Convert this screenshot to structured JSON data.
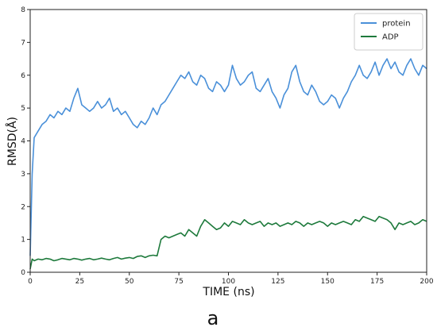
{
  "chart_data": {
    "type": "line",
    "title": "",
    "xlabel": "TIME (ns)",
    "ylabel": "RMSD(Å)",
    "xlim": [
      0,
      200
    ],
    "ylim": [
      0,
      8
    ],
    "xticks": [
      0,
      25,
      50,
      75,
      100,
      125,
      150,
      175,
      200
    ],
    "yticks": [
      0,
      1,
      2,
      3,
      4,
      5,
      6,
      7,
      8
    ],
    "grid": false,
    "legend_position": "top-right",
    "series": [
      {
        "name": "protein",
        "color": "#4a90d9",
        "x": [
          0,
          1,
          2,
          4,
          6,
          8,
          10,
          12,
          14,
          16,
          18,
          20,
          22,
          24,
          26,
          28,
          30,
          32,
          34,
          36,
          38,
          40,
          42,
          44,
          46,
          48,
          50,
          52,
          54,
          56,
          58,
          60,
          62,
          64,
          66,
          68,
          70,
          72,
          74,
          76,
          78,
          80,
          82,
          84,
          86,
          88,
          90,
          92,
          94,
          96,
          98,
          100,
          102,
          104,
          106,
          108,
          110,
          112,
          114,
          116,
          118,
          120,
          122,
          124,
          126,
          128,
          130,
          132,
          134,
          136,
          138,
          140,
          142,
          144,
          146,
          148,
          150,
          152,
          154,
          156,
          158,
          160,
          162,
          164,
          166,
          168,
          170,
          172,
          174,
          176,
          178,
          180,
          182,
          184,
          186,
          188,
          190,
          192,
          194,
          196,
          198,
          200
        ],
        "values": [
          0.5,
          3.0,
          4.1,
          4.3,
          4.5,
          4.6,
          4.8,
          4.7,
          4.9,
          4.8,
          5.0,
          4.9,
          5.3,
          5.6,
          5.1,
          5.0,
          4.9,
          5.0,
          5.2,
          5.0,
          5.1,
          5.3,
          4.9,
          5.0,
          4.8,
          4.9,
          4.7,
          4.5,
          4.4,
          4.6,
          4.5,
          4.7,
          5.0,
          4.8,
          5.1,
          5.2,
          5.4,
          5.6,
          5.8,
          6.0,
          5.9,
          6.1,
          5.8,
          5.7,
          6.0,
          5.9,
          5.6,
          5.5,
          5.8,
          5.7,
          5.5,
          5.7,
          6.3,
          5.9,
          5.7,
          5.8,
          6.0,
          6.1,
          5.6,
          5.5,
          5.7,
          5.9,
          5.5,
          5.3,
          5.0,
          5.4,
          5.6,
          6.1,
          6.3,
          5.8,
          5.5,
          5.4,
          5.7,
          5.5,
          5.2,
          5.1,
          5.2,
          5.4,
          5.3,
          5.0,
          5.3,
          5.5,
          5.8,
          6.0,
          6.3,
          6.0,
          5.9,
          6.1,
          6.4,
          6.0,
          6.3,
          6.5,
          6.2,
          6.4,
          6.1,
          6.0,
          6.3,
          6.5,
          6.2,
          6.0,
          6.3,
          6.2
        ]
      },
      {
        "name": "ADP",
        "color": "#1e7a3c",
        "x": [
          0,
          1,
          2,
          4,
          6,
          8,
          10,
          12,
          14,
          16,
          18,
          20,
          22,
          24,
          26,
          28,
          30,
          32,
          34,
          36,
          38,
          40,
          42,
          44,
          46,
          48,
          50,
          52,
          54,
          56,
          58,
          60,
          62,
          64,
          66,
          68,
          70,
          72,
          74,
          76,
          78,
          80,
          82,
          84,
          86,
          88,
          90,
          92,
          94,
          96,
          98,
          100,
          102,
          104,
          106,
          108,
          110,
          112,
          114,
          116,
          118,
          120,
          122,
          124,
          126,
          128,
          130,
          132,
          134,
          136,
          138,
          140,
          142,
          144,
          146,
          148,
          150,
          152,
          154,
          156,
          158,
          160,
          162,
          164,
          166,
          168,
          170,
          172,
          174,
          176,
          178,
          180,
          182,
          184,
          186,
          188,
          190,
          192,
          194,
          196,
          198,
          200
        ],
        "values": [
          0.1,
          0.4,
          0.35,
          0.4,
          0.38,
          0.42,
          0.4,
          0.35,
          0.38,
          0.42,
          0.4,
          0.38,
          0.42,
          0.4,
          0.37,
          0.4,
          0.42,
          0.38,
          0.4,
          0.43,
          0.4,
          0.38,
          0.42,
          0.45,
          0.4,
          0.43,
          0.45,
          0.42,
          0.48,
          0.5,
          0.45,
          0.5,
          0.52,
          0.5,
          1.0,
          1.1,
          1.05,
          1.1,
          1.15,
          1.2,
          1.1,
          1.3,
          1.2,
          1.1,
          1.4,
          1.6,
          1.5,
          1.4,
          1.3,
          1.35,
          1.5,
          1.4,
          1.55,
          1.5,
          1.45,
          1.6,
          1.5,
          1.45,
          1.5,
          1.55,
          1.4,
          1.5,
          1.45,
          1.5,
          1.4,
          1.45,
          1.5,
          1.45,
          1.55,
          1.5,
          1.4,
          1.5,
          1.45,
          1.5,
          1.55,
          1.5,
          1.4,
          1.5,
          1.45,
          1.5,
          1.55,
          1.5,
          1.45,
          1.6,
          1.55,
          1.7,
          1.65,
          1.6,
          1.55,
          1.7,
          1.65,
          1.6,
          1.5,
          1.3,
          1.5,
          1.45,
          1.5,
          1.55,
          1.45,
          1.5,
          1.6,
          1.55
        ]
      }
    ]
  },
  "caption": "a"
}
